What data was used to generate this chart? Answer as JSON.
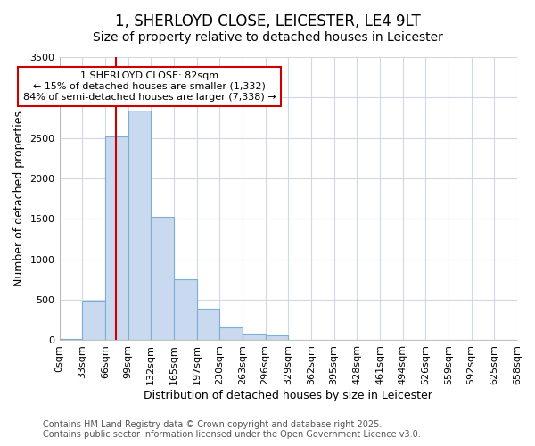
{
  "title1": "1, SHERLOYD CLOSE, LEICESTER, LE4 9LT",
  "title2": "Size of property relative to detached houses in Leicester",
  "xlabel": "Distribution of detached houses by size in Leicester",
  "ylabel": "Number of detached properties",
  "bar_values": [
    20,
    480,
    2520,
    2840,
    1530,
    750,
    390,
    155,
    80,
    55,
    0,
    0,
    0,
    0,
    0,
    0,
    0,
    0,
    0,
    0
  ],
  "bin_labels": [
    "0sqm",
    "33sqm",
    "66sqm",
    "99sqm",
    "132sqm",
    "165sqm",
    "197sqm",
    "230sqm",
    "263sqm",
    "296sqm",
    "329sqm",
    "362sqm",
    "395sqm",
    "428sqm",
    "461sqm",
    "494sqm",
    "526sqm",
    "559sqm",
    "592sqm",
    "625sqm",
    "658sqm"
  ],
  "bar_color": "#c8d9f0",
  "bar_edge_color": "#7bafd4",
  "annotation_text": "1 SHERLOYD CLOSE: 82sqm\n← 15% of detached houses are smaller (1,332)\n84% of semi-detached houses are larger (7,338) →",
  "annotation_box_color": "#ffffff",
  "annotation_box_edge": "#cc0000",
  "vline_color": "#cc0000",
  "vline_x": 82,
  "ylim": [
    0,
    3500
  ],
  "yticks": [
    0,
    500,
    1000,
    1500,
    2000,
    2500,
    3000,
    3500
  ],
  "footer1": "Contains HM Land Registry data © Crown copyright and database right 2025.",
  "footer2": "Contains public sector information licensed under the Open Government Licence v3.0.",
  "bg_color": "#ffffff",
  "plot_bg_color": "#ffffff",
  "grid_color": "#d0d8e8",
  "title_fontsize": 12,
  "subtitle_fontsize": 10,
  "axis_label_fontsize": 9,
  "tick_fontsize": 8,
  "annotation_fontsize": 8,
  "footer_fontsize": 7
}
